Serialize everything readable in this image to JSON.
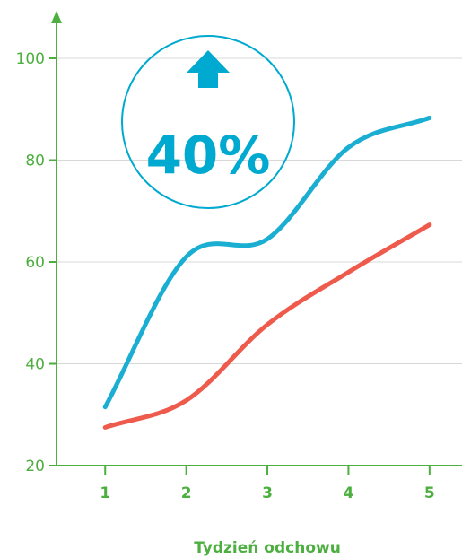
{
  "chart_data": {
    "type": "line",
    "x": [
      1,
      2,
      3,
      4,
      5
    ],
    "series": [
      {
        "values": [
          31.5,
          61,
          64.5,
          82.5,
          88.3
        ],
        "color": "#1aaed3"
      },
      {
        "values": [
          27.5,
          32.8,
          47.7,
          58,
          67.3
        ],
        "color": "#ee5a4c"
      }
    ],
    "xlabel": "Tydzień odchowu",
    "ylabel": "",
    "xlim": [
      0.4,
      5.4
    ],
    "ylim": [
      20,
      100
    ],
    "yticks": [
      20,
      40,
      60,
      80,
      100
    ],
    "xticks": [
      1,
      2,
      3,
      4,
      5
    ],
    "grid": true,
    "annotation": {
      "text": "40%",
      "icon": "arrow-up-icon"
    },
    "colors": {
      "axis": "#4caf3f",
      "grid": "#d8d8d8",
      "accent": "#00a9cf"
    }
  }
}
